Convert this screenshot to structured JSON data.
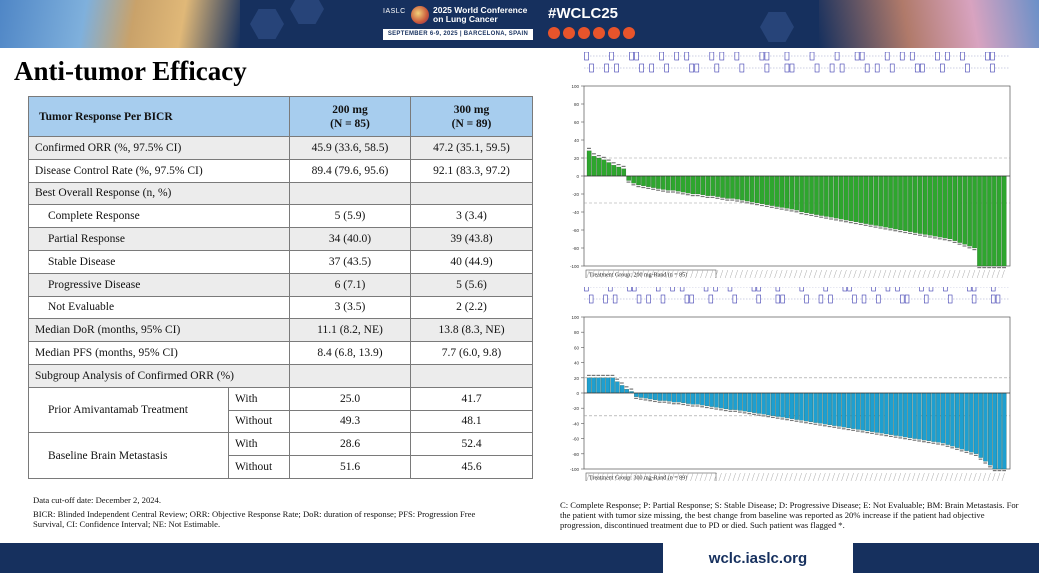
{
  "header": {
    "org": "IASLC",
    "conference_line1": "2025 World Conference",
    "conference_line2": "on Lung Cancer",
    "dates": "SEPTEMBER 6-9, 2025 | BARCELONA, SPAIN",
    "hashtag": "#WCLC25",
    "social_icons": [
      "facebook-icon",
      "linkedin-icon",
      "x-icon",
      "instagram-icon",
      "youtube-icon",
      "wechat-icon"
    ]
  },
  "title": "Anti-tumor Efficacy",
  "table": {
    "header": {
      "label": "Tumor Response Per BICR",
      "col1_line1": "200 mg",
      "col1_line2": "(N = 85)",
      "col2_line1": "300 mg",
      "col2_line2": "(N = 89)"
    },
    "rows": [
      {
        "label": "Confirmed ORR (%, 97.5% CI)",
        "v1": "45.9 (33.6, 58.5)",
        "v2": "47.2 (35.1, 59.5)"
      },
      {
        "label": "Disease Control Rate (%, 97.5% CI)",
        "v1": "89.4 (79.6, 95.6)",
        "v2": "92.1 (83.3, 97.2)"
      },
      {
        "label": "Best Overall Response  (n, %)",
        "v1": "",
        "v2": ""
      },
      {
        "label": "Complete Response",
        "v1": "5 (5.9)",
        "v2": "3 (3.4)"
      },
      {
        "label": "Partial Response",
        "v1": "34 (40.0)",
        "v2": "39 (43.8)"
      },
      {
        "label": "Stable Disease",
        "v1": "37 (43.5)",
        "v2": "40 (44.9)"
      },
      {
        "label": "Progressive Disease",
        "v1": "6 (7.1)",
        "v2": "5 (5.6)"
      },
      {
        "label": "Not Evaluable",
        "v1": "3 (3.5)",
        "v2": "2 (2.2)"
      },
      {
        "label": "Median DoR (months, 95% CI)",
        "v1": "11.1 (8.2, NE)",
        "v2": "13.8 (8.3, NE)"
      },
      {
        "label": "Median PFS (months, 95% CI)",
        "v1": "8.4 (6.8, 13.9)",
        "v2": "7.7 (6.0, 9.8)"
      },
      {
        "label": "Subgroup Analysis of Confirmed ORR (%)",
        "v1": "",
        "v2": ""
      }
    ],
    "subgroups": [
      {
        "label": "Prior Amivantamab Treatment",
        "rows": [
          {
            "sub": "With",
            "v1": "25.0",
            "v2": "41.7"
          },
          {
            "sub": "Without",
            "v1": "49.3",
            "v2": "48.1"
          }
        ]
      },
      {
        "label": "Baseline Brain Metastasis",
        "rows": [
          {
            "sub": "With",
            "v1": "28.6",
            "v2": "52.4"
          },
          {
            "sub": "Without",
            "v1": "51.6",
            "v2": "45.6"
          }
        ]
      }
    ]
  },
  "notes": {
    "cutoff": "Data cut-off date: December 2, 2024.",
    "abbrev": "BICR: Blinded Independent Central Review; ORR: Objective Response Rate; DoR: duration of response; PFS: Progression Free Survival, CI: Confidence Interval; NE: Not Estimable.",
    "legend": "C: Complete Response; P: Partial Response; S: Stable Disease; D: Progressive Disease; E: Not Evaluable; BM: Brain Metastasis. For the patient with tumor size missing, the best change from baseline was reported as 20% increase if the patient had objective progression, discontinued treatment due to PD or died. Such patient was flagged *."
  },
  "footer": {
    "url": "wclc.iaslc.org"
  },
  "chart_data": [
    {
      "type": "bar",
      "group_label": "Treatment Group: 200 mg-Rand (n = 85)",
      "ylim": [
        -100,
        100
      ],
      "yticks": [
        -100,
        -80,
        -60,
        -40,
        -20,
        0,
        20,
        40,
        60,
        80,
        100
      ],
      "reference_lines": [
        20,
        -30
      ],
      "color": "#2ea62e",
      "values": [
        28,
        22,
        20,
        18,
        15,
        12,
        10,
        8,
        -5,
        -8,
        -10,
        -11,
        -12,
        -13,
        -14,
        -15,
        -16,
        -16,
        -17,
        -18,
        -19,
        -20,
        -20,
        -21,
        -22,
        -22,
        -23,
        -24,
        -25,
        -25,
        -26,
        -27,
        -28,
        -29,
        -30,
        -31,
        -32,
        -33,
        -34,
        -35,
        -36,
        -37,
        -38,
        -40,
        -41,
        -42,
        -43,
        -44,
        -45,
        -46,
        -47,
        -48,
        -49,
        -50,
        -51,
        -52,
        -53,
        -54,
        -55,
        -56,
        -57,
        -58,
        -59,
        -60,
        -61,
        -62,
        -63,
        -64,
        -65,
        -66,
        -67,
        -68,
        -69,
        -70,
        -72,
        -74,
        -76,
        -78,
        -80,
        -100,
        -100,
        -100,
        -100,
        -100,
        -100
      ]
    },
    {
      "type": "bar",
      "group_label": "Treatment Group: 300 mg-Rand (n = 89)",
      "ylim": [
        -100,
        100
      ],
      "yticks": [
        -100,
        -80,
        -60,
        -40,
        -20,
        0,
        20,
        40,
        60,
        80,
        100
      ],
      "reference_lines": [
        20,
        -30
      ],
      "color": "#1e9fd0",
      "values": [
        20,
        20,
        20,
        20,
        20,
        20,
        15,
        10,
        5,
        2,
        -5,
        -6,
        -7,
        -8,
        -9,
        -10,
        -10,
        -11,
        -12,
        -12,
        -13,
        -14,
        -15,
        -15,
        -16,
        -17,
        -18,
        -19,
        -20,
        -21,
        -22,
        -22,
        -23,
        -24,
        -25,
        -26,
        -27,
        -28,
        -29,
        -30,
        -31,
        -32,
        -33,
        -34,
        -35,
        -36,
        -37,
        -38,
        -39,
        -40,
        -41,
        -42,
        -43,
        -44,
        -45,
        -46,
        -47,
        -48,
        -49,
        -50,
        -51,
        -52,
        -53,
        -54,
        -55,
        -56,
        -57,
        -58,
        -59,
        -60,
        -61,
        -62,
        -63,
        -64,
        -65,
        -66,
        -68,
        -70,
        -72,
        -74,
        -76,
        -78,
        -80,
        -85,
        -90,
        -95,
        -100,
        -100,
        -100
      ]
    }
  ]
}
